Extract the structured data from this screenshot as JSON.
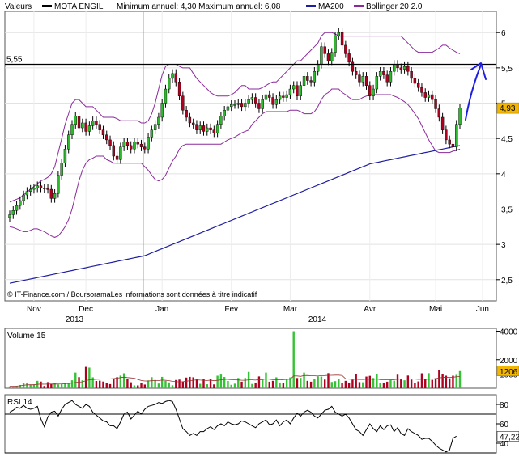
{
  "header": {
    "valeurs": "Valeurs",
    "symbol": "MOTA ENGIL",
    "minmax": "Minimum annuel: 4,30 Maximum annuel: 6,08",
    "legend_ma": "MA200",
    "legend_bb": "Bollinger 20 2.0"
  },
  "colors": {
    "up": "#2db82d",
    "down": "#b00020",
    "ma200": "#1e1ea0",
    "bollinger": "#8a2a9a",
    "annotation": "#1e1ee0",
    "last_badge": "#f2b705"
  },
  "copyright": "© IT-Finance.com / BoursoramaLes informations sont données à titre indicatif",
  "resistance_label": "5,55",
  "last_price_label": "4,93",
  "volume_label": "Volume 15",
  "volume_last_label": "1206",
  "rsi_label": "RSI 14",
  "rsi_last_label": "47,22",
  "chart_data": [
    {
      "type": "candlestick",
      "title": "MOTA ENGIL",
      "x_ticks": [
        "Nov",
        "Dec",
        "Jan",
        "Fev",
        "Mar",
        "Avr",
        "Mai",
        "Jun"
      ],
      "year_labels": [
        "2013",
        "2014"
      ],
      "y_ticks": [
        "2,5",
        "3",
        "3,5",
        "4",
        "4,5",
        "5",
        "5,5",
        "6"
      ],
      "ylim": [
        2.2,
        6.3
      ],
      "resistance": 5.55,
      "last": 4.93,
      "annual_min": 4.3,
      "annual_max": 6.08,
      "close": [
        3.42,
        3.48,
        3.55,
        3.62,
        3.7,
        3.75,
        3.78,
        3.8,
        3.83,
        3.8,
        3.79,
        3.78,
        3.65,
        3.72,
        3.98,
        4.15,
        4.35,
        4.55,
        4.7,
        4.82,
        4.65,
        4.72,
        4.6,
        4.68,
        4.75,
        4.7,
        4.62,
        4.55,
        4.48,
        4.4,
        4.25,
        4.2,
        4.38,
        4.45,
        4.4,
        4.35,
        4.45,
        4.42,
        4.38,
        4.35,
        4.52,
        4.62,
        4.7,
        4.8,
        5.0,
        5.2,
        5.35,
        5.42,
        5.3,
        5.1,
        4.9,
        4.8,
        4.72,
        4.7,
        4.62,
        4.68,
        4.6,
        4.65,
        4.62,
        4.58,
        4.7,
        4.82,
        4.9,
        4.95,
        4.98,
        4.98,
        5.0,
        4.95,
        5.0,
        5.05,
        5.08,
        5.0,
        4.92,
        5.05,
        5.12,
        5.08,
        4.98,
        5.05,
        5.1,
        5.08,
        5.12,
        5.2,
        5.25,
        5.1,
        5.25,
        5.38,
        5.32,
        5.3,
        5.45,
        5.55,
        5.8,
        5.7,
        5.6,
        5.72,
        5.95,
        6.0,
        5.82,
        5.7,
        5.58,
        5.45,
        5.4,
        5.3,
        5.38,
        5.25,
        5.1,
        5.2,
        5.38,
        5.45,
        5.4,
        5.3,
        5.45,
        5.55,
        5.5,
        5.48,
        5.52,
        5.45,
        5.35,
        5.28,
        5.22,
        5.15,
        5.08,
        5.12,
        5.05,
        4.92,
        4.8,
        4.62,
        4.48,
        4.42,
        4.38,
        4.7,
        4.93
      ],
      "ma200": [
        2.45,
        2.46,
        2.47,
        2.48,
        2.49,
        2.5,
        2.51,
        2.52,
        2.53,
        2.54,
        2.55,
        2.56,
        2.57,
        2.58,
        2.59,
        2.6,
        2.61,
        2.62,
        2.63,
        2.64,
        2.65,
        2.66,
        2.67,
        2.68,
        2.69,
        2.7,
        2.71,
        2.72,
        2.73,
        2.74,
        2.75,
        2.76,
        2.77,
        2.78,
        2.79,
        2.8,
        2.81,
        2.82,
        2.83,
        2.84,
        2.86,
        2.88,
        2.9,
        2.92,
        2.94,
        2.96,
        2.98,
        3.0,
        3.02,
        3.04,
        3.06,
        3.08,
        3.1,
        3.12,
        3.14,
        3.16,
        3.18,
        3.2,
        3.22,
        3.24,
        3.26,
        3.28,
        3.3,
        3.32,
        3.34,
        3.36,
        3.38,
        3.4,
        3.42,
        3.44,
        3.46,
        3.48,
        3.5,
        3.52,
        3.54,
        3.56,
        3.58,
        3.6,
        3.62,
        3.64,
        3.66,
        3.68,
        3.7,
        3.72,
        3.74,
        3.76,
        3.78,
        3.8,
        3.82,
        3.84,
        3.86,
        3.88,
        3.9,
        3.92,
        3.94,
        3.96,
        3.98,
        4.0,
        4.02,
        4.04,
        4.06,
        4.08,
        4.1,
        4.12,
        4.14,
        4.15,
        4.16,
        4.17,
        4.18,
        4.19,
        4.2,
        4.21,
        4.22,
        4.23,
        4.24,
        4.25,
        4.26,
        4.27,
        4.28,
        4.29,
        4.3,
        4.31,
        4.32,
        4.33,
        4.34,
        4.35,
        4.36,
        4.37,
        4.38,
        4.39,
        4.4
      ],
      "bb_upper": [
        3.6,
        3.62,
        3.64,
        3.66,
        3.7,
        3.74,
        3.78,
        3.82,
        3.86,
        3.9,
        3.92,
        3.95,
        4.0,
        4.1,
        4.3,
        4.5,
        4.7,
        4.85,
        5.0,
        5.05,
        5.05,
        5.0,
        4.95,
        4.95,
        4.95,
        4.9,
        4.85,
        4.8,
        4.8,
        4.8,
        4.8,
        4.78,
        4.75,
        4.75,
        4.75,
        4.75,
        4.75,
        4.75,
        4.72,
        4.72,
        4.75,
        4.85,
        5.0,
        5.2,
        5.4,
        5.52,
        5.55,
        5.55,
        5.55,
        5.52,
        5.5,
        5.5,
        5.5,
        5.42,
        5.35,
        5.3,
        5.25,
        5.2,
        5.15,
        5.12,
        5.1,
        5.1,
        5.1,
        5.1,
        5.12,
        5.15,
        5.2,
        5.25,
        5.25,
        5.2,
        5.2,
        5.2,
        5.2,
        5.22,
        5.25,
        5.28,
        5.3,
        5.3,
        5.35,
        5.4,
        5.45,
        5.5,
        5.55,
        5.6,
        5.6,
        5.65,
        5.7,
        5.75,
        5.8,
        5.85,
        5.95,
        6.0,
        6.0,
        6.0,
        5.98,
        5.95,
        5.95,
        5.95,
        5.95,
        5.95,
        5.95,
        5.95,
        5.95,
        5.95,
        5.95,
        5.95,
        5.95,
        5.95,
        5.95,
        5.95,
        5.95,
        5.95,
        5.95,
        5.95,
        5.9,
        5.85,
        5.8,
        5.75,
        5.72,
        5.72,
        5.72,
        5.72,
        5.72,
        5.75,
        5.78,
        5.82,
        5.82,
        5.78,
        5.75,
        5.72,
        5.7
      ],
      "bb_lower": [
        3.25,
        3.24,
        3.22,
        3.2,
        3.18,
        3.18,
        3.2,
        3.22,
        3.22,
        3.2,
        3.18,
        3.15,
        3.12,
        3.1,
        3.12,
        3.18,
        3.25,
        3.35,
        3.5,
        3.7,
        3.9,
        4.05,
        4.15,
        4.2,
        4.22,
        4.25,
        4.25,
        4.25,
        4.2,
        4.18,
        4.15,
        4.15,
        4.15,
        4.15,
        4.15,
        4.15,
        4.15,
        4.15,
        4.15,
        4.1,
        4.05,
        3.98,
        3.92,
        3.9,
        3.92,
        3.98,
        4.08,
        4.18,
        4.25,
        4.35,
        4.4,
        4.42,
        4.42,
        4.42,
        4.42,
        4.42,
        4.42,
        4.42,
        4.42,
        4.42,
        4.42,
        4.42,
        4.45,
        4.48,
        4.5,
        4.52,
        4.55,
        4.58,
        4.6,
        4.62,
        4.7,
        4.75,
        4.8,
        4.85,
        4.88,
        4.88,
        4.88,
        4.88,
        4.88,
        4.88,
        4.88,
        4.9,
        4.9,
        4.9,
        4.88,
        4.85,
        4.85,
        4.85,
        4.88,
        4.95,
        5.05,
        5.12,
        5.15,
        5.2,
        5.2,
        5.2,
        5.15,
        5.12,
        5.08,
        5.05,
        5.05,
        5.05,
        5.08,
        5.1,
        5.12,
        5.12,
        5.12,
        5.12,
        5.12,
        5.12,
        5.12,
        5.1,
        5.08,
        5.05,
        5.02,
        4.98,
        4.92,
        4.85,
        4.78,
        4.68,
        4.58,
        4.48,
        4.4,
        4.32,
        4.3,
        4.3,
        4.3,
        4.3,
        4.32,
        4.33,
        4.35
      ]
    },
    {
      "type": "bar",
      "title": "Volume 15",
      "y_ticks": [
        "1000",
        "2000",
        "4000"
      ],
      "ylim": [
        0,
        4200
      ],
      "last": 1206,
      "values": [
        130,
        140,
        170,
        230,
        370,
        400,
        260,
        270,
        520,
        470,
        160,
        430,
        290,
        340,
        260,
        300,
        380,
        330,
        560,
        1100,
        780,
        560,
        1500,
        1450,
        770,
        510,
        530,
        470,
        340,
        290,
        680,
        780,
        890,
        1050,
        660,
        420,
        200,
        200,
        380,
        260,
        550,
        780,
        580,
        330,
        800,
        520,
        410,
        210,
        580,
        610,
        480,
        750,
        800,
        770,
        680,
        310,
        640,
        280,
        640,
        270,
        880,
        960,
        790,
        510,
        240,
        320,
        720,
        460,
        720,
        1150,
        300,
        400,
        830,
        580,
        1100,
        460,
        520,
        770,
        400,
        380,
        600,
        760,
        4000,
        720,
        730,
        1100,
        520,
        460,
        630,
        830,
        820,
        610,
        1060,
        440,
        500,
        630,
        360,
        520,
        400,
        600,
        1000,
        430,
        420,
        820,
        870,
        720,
        1000,
        340,
        400,
        460,
        580,
        530,
        950,
        620,
        560,
        890,
        610,
        370,
        480,
        1050,
        650,
        1060,
        590,
        700,
        1250,
        1000,
        880,
        700,
        880,
        940,
        1206
      ]
    },
    {
      "type": "line",
      "title": "RSI 14",
      "y_ticks": [
        "40",
        "60",
        "80"
      ],
      "ylim": [
        30,
        90
      ],
      "levels": [
        70,
        30
      ],
      "last": 47.22,
      "values": [
        72,
        74,
        77,
        76,
        79,
        76,
        75,
        76,
        78,
        65,
        57,
        67,
        72,
        73,
        68,
        75,
        80,
        82,
        84,
        80,
        78,
        76,
        80,
        78,
        72,
        69,
        66,
        63,
        62,
        58,
        58,
        55,
        62,
        70,
        72,
        65,
        69,
        73,
        70,
        75,
        78,
        79,
        80,
        82,
        81,
        83,
        84,
        83,
        75,
        65,
        55,
        52,
        48,
        50,
        48,
        52,
        52,
        55,
        57,
        54,
        58,
        60,
        58,
        62,
        60,
        59,
        60,
        63,
        62,
        60,
        58,
        56,
        60,
        62,
        64,
        59,
        60,
        64,
        58,
        62,
        64,
        60,
        66,
        71,
        68,
        72,
        74,
        72,
        68,
        66,
        70,
        74,
        75,
        78,
        72,
        70,
        68,
        70,
        66,
        60,
        54,
        52,
        48,
        54,
        60,
        55,
        52,
        58,
        54,
        58,
        59,
        52,
        56,
        50,
        48,
        55,
        52,
        50,
        48,
        44,
        45,
        45,
        42,
        38,
        35,
        33,
        31,
        33,
        45,
        47.22
      ]
    }
  ]
}
